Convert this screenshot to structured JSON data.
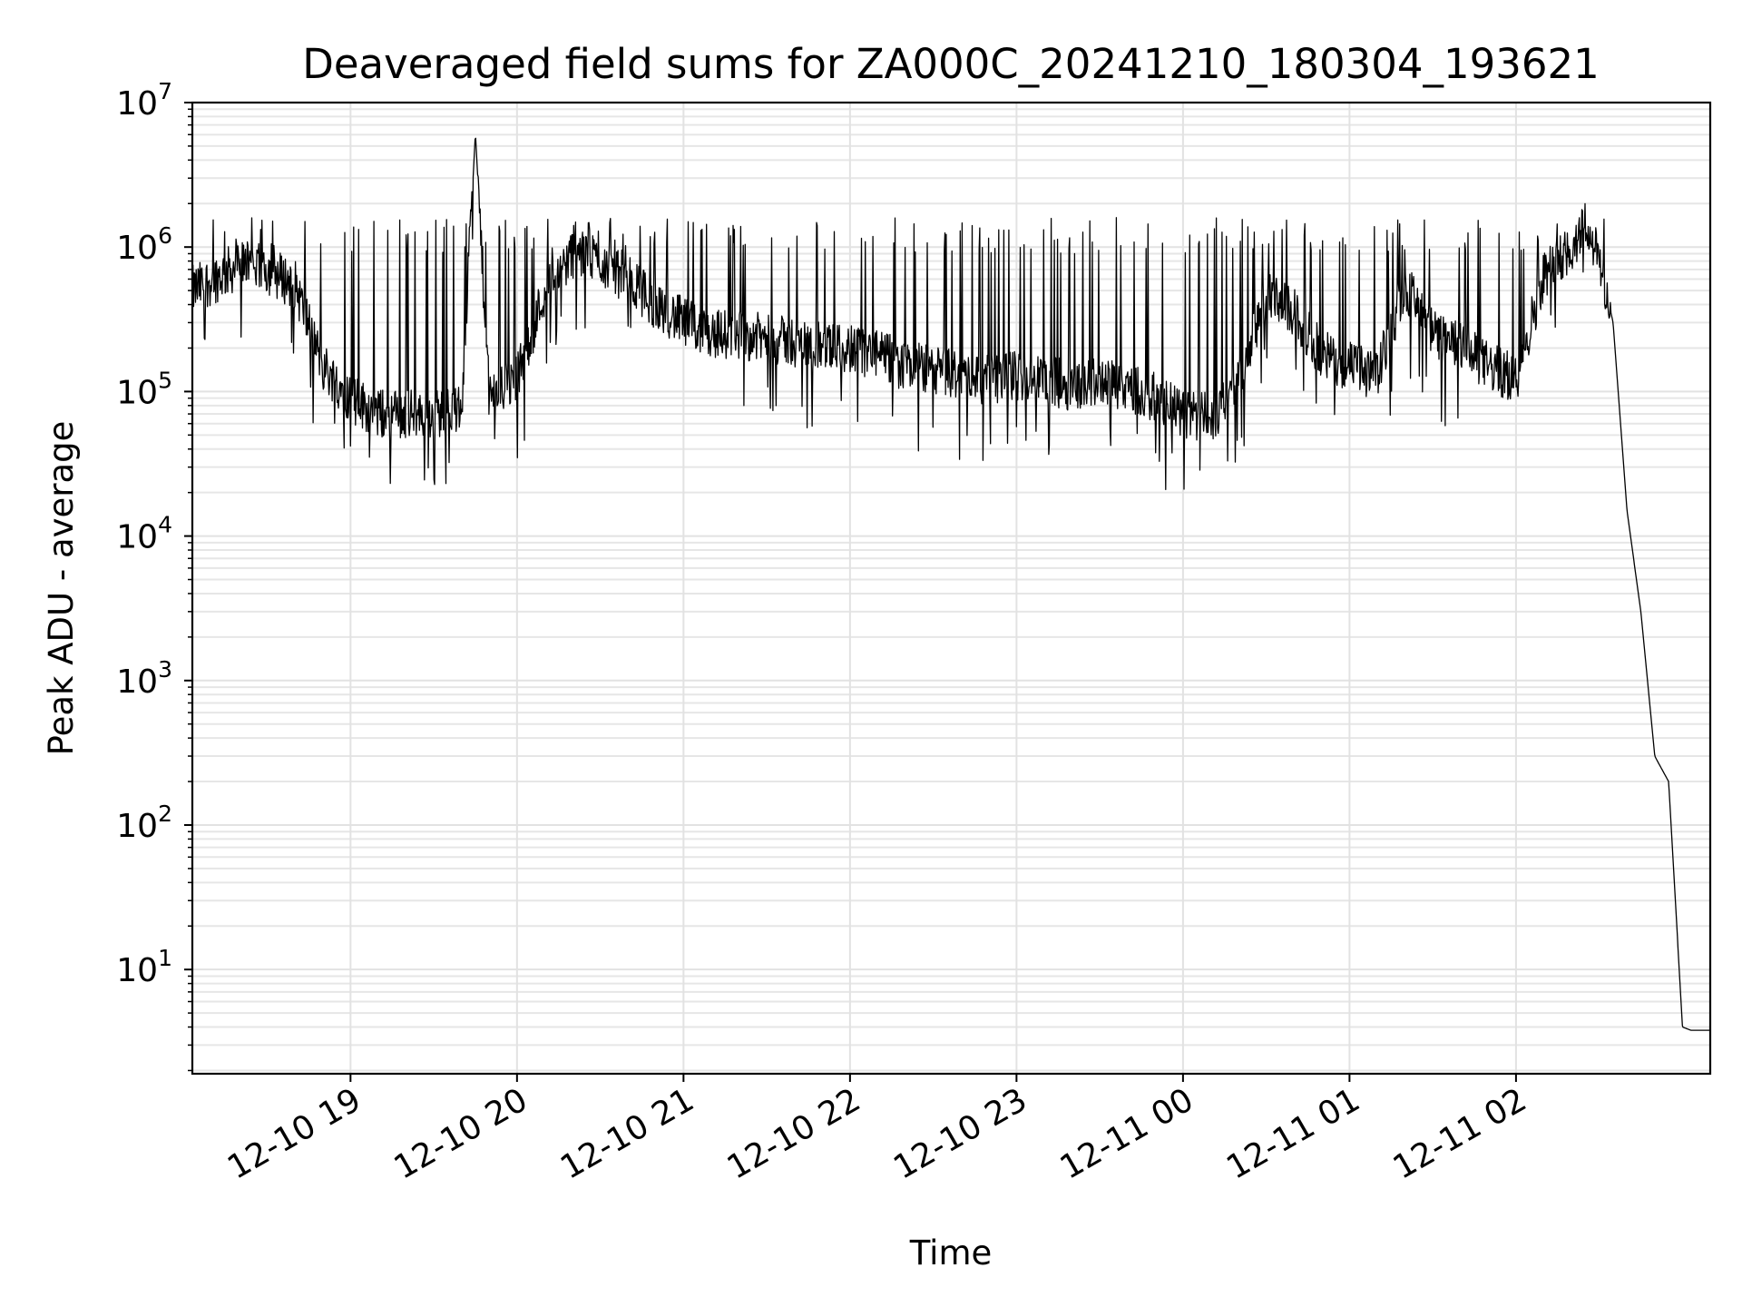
{
  "chart_data": {
    "type": "line",
    "title": "Deaveraged field sums for ZA000C_20241210_180304_193621",
    "xlabel": "Time",
    "ylabel": "Peak ADU - average",
    "yscale": "log",
    "ylim": [
      1.9,
      10000000
    ],
    "grid": true,
    "line_color": "#000000",
    "x_ticks": [
      "12-10 19",
      "12-10 20",
      "12-10 21",
      "12-10 22",
      "12-10 23",
      "12-11 00",
      "12-11 01",
      "12-11 02"
    ],
    "y_ticks": [
      {
        "base": "10",
        "exp": "1"
      },
      {
        "base": "10",
        "exp": "2"
      },
      {
        "base": "10",
        "exp": "3"
      },
      {
        "base": "10",
        "exp": "4"
      },
      {
        "base": "10",
        "exp": "5"
      },
      {
        "base": "10",
        "exp": "6"
      },
      {
        "base": "10",
        "exp": "7"
      }
    ],
    "series": [
      {
        "x": [
          "18:03",
          "18:20",
          "18:30",
          "18:40",
          "18:50",
          "19:00",
          "19:10",
          "19:20",
          "19:30",
          "19:40",
          "19:45",
          "19:50",
          "20:00",
          "20:10",
          "20:20",
          "20:30",
          "20:40",
          "20:50",
          "21:00",
          "21:10",
          "21:20",
          "21:30",
          "21:40",
          "21:50",
          "22:00",
          "22:10",
          "22:20",
          "22:30",
          "22:40",
          "22:50",
          "23:00",
          "23:10",
          "23:20",
          "23:30",
          "23:40",
          "23:50",
          "00:00",
          "00:10",
          "00:20",
          "00:30",
          "00:40",
          "00:50",
          "01:00",
          "01:10",
          "01:20",
          "01:30",
          "01:40",
          "01:50",
          "02:00",
          "02:10",
          "02:20",
          "02:25",
          "02:30",
          "02:35",
          "02:40",
          "02:45",
          "02:50",
          "02:55",
          "03:00",
          "03:03",
          "03:06",
          "03:10"
        ],
        "y": [
          500000,
          750000,
          700000,
          550000,
          150000,
          90000,
          70000,
          70000,
          70000,
          75000,
          6200000,
          90000,
          120000,
          500000,
          900000,
          800000,
          600000,
          400000,
          300000,
          250000,
          250000,
          230000,
          220000,
          200000,
          200000,
          180000,
          150000,
          140000,
          130000,
          120000,
          130000,
          120000,
          110000,
          120000,
          110000,
          90000,
          70000,
          65000,
          120000,
          450000,
          350000,
          180000,
          150000,
          130000,
          550000,
          250000,
          200000,
          150000,
          120000,
          650000,
          1000000,
          1500000,
          800000,
          300000,
          15000,
          3000,
          300,
          200,
          4,
          3.8,
          3.8,
          3.8
        ]
      }
    ]
  }
}
